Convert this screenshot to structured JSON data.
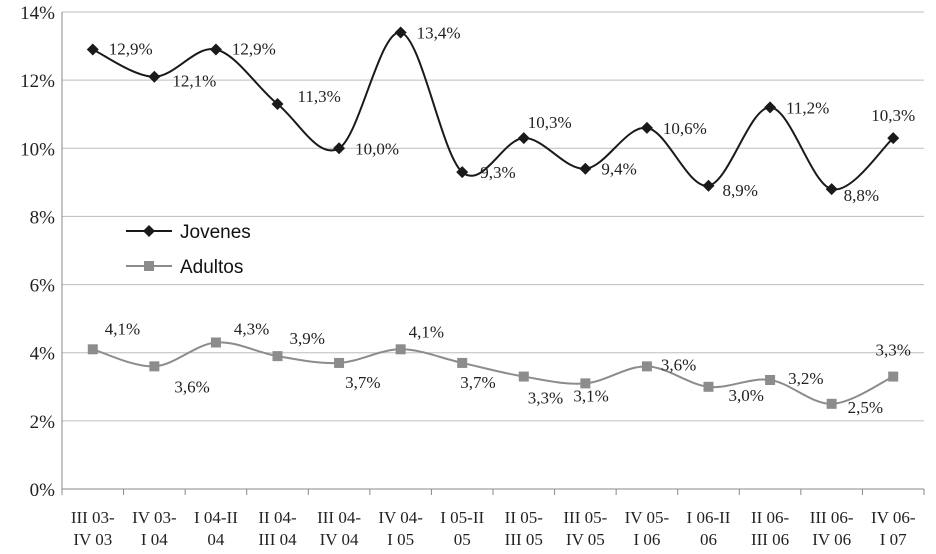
{
  "chart_data": {
    "type": "line",
    "title": "",
    "xlabel": "",
    "ylabel": "",
    "ylim": [
      0,
      14
    ],
    "y_ticks": [
      "0%",
      "2%",
      "4%",
      "6%",
      "8%",
      "10%",
      "12%",
      "14%"
    ],
    "grid": "horizontal",
    "legend_position": "left-middle",
    "categories": [
      [
        "III 03-",
        "IV 03"
      ],
      [
        "IV 03-",
        "I 04"
      ],
      [
        "I 04-II",
        "04"
      ],
      [
        "II 04-",
        "III 04"
      ],
      [
        "III 04-",
        "IV 04"
      ],
      [
        "IV 04-",
        "I 05"
      ],
      [
        "I 05-II",
        "05"
      ],
      [
        "II 05-",
        "III 05"
      ],
      [
        "III 05-",
        "IV 05"
      ],
      [
        "IV 05-",
        "I 06"
      ],
      [
        "I 06-II",
        "06"
      ],
      [
        "II 06-",
        "III 06"
      ],
      [
        "III 06-",
        "IV 06"
      ],
      [
        "IV 06-",
        "I 07"
      ]
    ],
    "series": [
      {
        "name": "Jovenes",
        "color": "#1a1a1a",
        "marker": "diamond",
        "values": [
          12.9,
          12.1,
          12.9,
          11.3,
          10.0,
          13.4,
          9.3,
          10.3,
          9.4,
          10.6,
          8.9,
          11.2,
          8.8,
          10.3
        ],
        "labels": [
          "12,9%",
          "12,1%",
          "12,9%",
          "11,3%",
          "10,0%",
          "13,4%",
          "9,3%",
          "10,3%",
          "9,4%",
          "10,6%",
          "8,9%",
          "11,2%",
          "8,8%",
          "10,3%"
        ]
      },
      {
        "name": "Adultos",
        "color": "#8c8c8c",
        "marker": "square",
        "values": [
          4.1,
          3.6,
          4.3,
          3.9,
          3.7,
          4.1,
          3.7,
          3.3,
          3.1,
          3.6,
          3.0,
          3.2,
          2.5,
          3.3
        ],
        "labels": [
          "4,1%",
          "3,6%",
          "4,3%",
          "3,9%",
          "3,7%",
          "4,1%",
          "3,7%",
          "3,3%",
          "3,1%",
          "3,6%",
          "3,0%",
          "3,2%",
          "2,5%",
          "3,3%"
        ]
      }
    ]
  }
}
